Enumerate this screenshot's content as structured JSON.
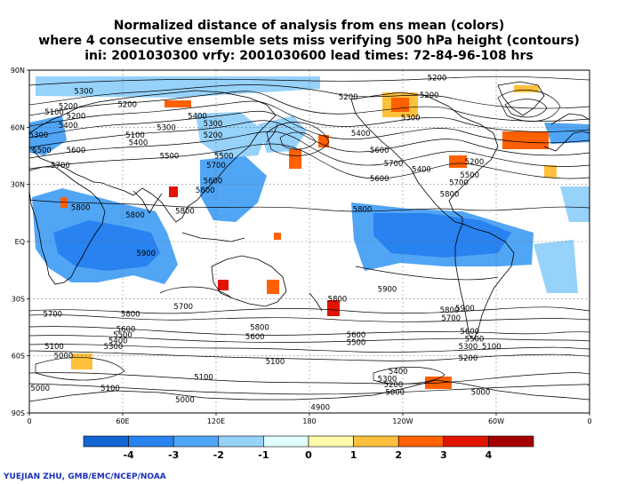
{
  "title": {
    "line1": "Normalized distance of analysis from ens mean (colors)",
    "line2": "where 4 consecutive ensemble sets miss verifying 500 hPa height (contours)",
    "line3": "ini: 2001030300 vrfy: 2001030600 lead times: 72-84-96-108 hrs"
  },
  "map": {
    "lat_ticks": [
      "90N",
      "60N",
      "30N",
      "EQ",
      "30S",
      "60S",
      "90S"
    ],
    "lon_ticks": [
      "0",
      "60E",
      "120E",
      "180",
      "120W",
      "60W",
      "0"
    ],
    "contour_labels": [
      {
        "text": "5300",
        "lon": 35,
        "lat": 79
      },
      {
        "text": "5200",
        "lon": 25,
        "lat": 71
      },
      {
        "text": "5100",
        "lon": 16,
        "lat": 68
      },
      {
        "text": "5200",
        "lon": 30,
        "lat": 66
      },
      {
        "text": "5400",
        "lon": 25,
        "lat": 61
      },
      {
        "text": "5300",
        "lon": 6,
        "lat": 56
      },
      {
        "text": "5500",
        "lon": 8,
        "lat": 48
      },
      {
        "text": "5600",
        "lon": 30,
        "lat": 48
      },
      {
        "text": "5700",
        "lon": 20,
        "lat": 40
      },
      {
        "text": "5200",
        "lon": 63,
        "lat": 72
      },
      {
        "text": "5300",
        "lon": 88,
        "lat": 60
      },
      {
        "text": "5400",
        "lon": 70,
        "lat": 52
      },
      {
        "text": "5500",
        "lon": 90,
        "lat": 45
      },
      {
        "text": "5800",
        "lon": 33,
        "lat": 18
      },
      {
        "text": "5800",
        "lon": 68,
        "lat": 14
      },
      {
        "text": "5800",
        "lon": 100,
        "lat": 16
      },
      {
        "text": "5900",
        "lon": 75,
        "lat": -6
      },
      {
        "text": "5100",
        "lon": 68,
        "lat": 56
      },
      {
        "text": "5200",
        "lon": 118,
        "lat": 56
      },
      {
        "text": "5300",
        "lon": 118,
        "lat": 62
      },
      {
        "text": "5400",
        "lon": 108,
        "lat": 66
      },
      {
        "text": "5500",
        "lon": 125,
        "lat": 45
      },
      {
        "text": "5600",
        "lon": 118,
        "lat": 32
      },
      {
        "text": "5700",
        "lon": 120,
        "lat": 40
      },
      {
        "text": "5800",
        "lon": 113,
        "lat": 27
      },
      {
        "text": "5200",
        "lon": 205,
        "lat": 76
      },
      {
        "text": "5400",
        "lon": 213,
        "lat": 57
      },
      {
        "text": "5600",
        "lon": 225,
        "lat": 48
      },
      {
        "text": "5700",
        "lon": 234,
        "lat": 41
      },
      {
        "text": "5600",
        "lon": 225,
        "lat": 33
      },
      {
        "text": "5300",
        "lon": 245,
        "lat": 65
      },
      {
        "text": "5800",
        "lon": 214,
        "lat": 17
      },
      {
        "text": "5900",
        "lon": 230,
        "lat": -25
      },
      {
        "text": "5200",
        "lon": 262,
        "lat": 86
      },
      {
        "text": "5200",
        "lon": 257,
        "lat": 77
      },
      {
        "text": "5400",
        "lon": 252,
        "lat": 38
      },
      {
        "text": "5200",
        "lon": 286,
        "lat": 42
      },
      {
        "text": "5500",
        "lon": 283,
        "lat": 35
      },
      {
        "text": "5700",
        "lon": 276,
        "lat": 31
      },
      {
        "text": "5800",
        "lon": 270,
        "lat": 25
      },
      {
        "text": "5900",
        "lon": 280,
        "lat": -35
      },
      {
        "text": "5800",
        "lon": 198,
        "lat": -30
      },
      {
        "text": "5800",
        "lon": 270,
        "lat": -36
      },
      {
        "text": "5700",
        "lon": 271,
        "lat": -40
      },
      {
        "text": "5700",
        "lon": 15,
        "lat": -38
      },
      {
        "text": "5800",
        "lon": 65,
        "lat": -38
      },
      {
        "text": "5700",
        "lon": 99,
        "lat": -34
      },
      {
        "text": "5800",
        "lon": 148,
        "lat": -45
      },
      {
        "text": "5600",
        "lon": 145,
        "lat": -50
      },
      {
        "text": "5600",
        "lon": 210,
        "lat": -49
      },
      {
        "text": "5500",
        "lon": 210,
        "lat": -53
      },
      {
        "text": "5600",
        "lon": 283,
        "lat": -47
      },
      {
        "text": "5500",
        "lon": 286,
        "lat": -51
      },
      {
        "text": "5300",
        "lon": 282,
        "lat": -55
      },
      {
        "text": "5100",
        "lon": 297,
        "lat": -55
      },
      {
        "text": "5200",
        "lon": 282,
        "lat": -61
      },
      {
        "text": "5600",
        "lon": 62,
        "lat": -46
      },
      {
        "text": "5500",
        "lon": 60,
        "lat": -49
      },
      {
        "text": "5400",
        "lon": 57,
        "lat": -52
      },
      {
        "text": "5300",
        "lon": 54,
        "lat": -55
      },
      {
        "text": "5100",
        "lon": 16,
        "lat": -55
      },
      {
        "text": "5000",
        "lon": 22,
        "lat": -60
      },
      {
        "text": "5000",
        "lon": 7,
        "lat": -77
      },
      {
        "text": "5100",
        "lon": 52,
        "lat": -77
      },
      {
        "text": "5100",
        "lon": 112,
        "lat": -71
      },
      {
        "text": "5000",
        "lon": 100,
        "lat": -83
      },
      {
        "text": "5100",
        "lon": 158,
        "lat": -63
      },
      {
        "text": "5400",
        "lon": 237,
        "lat": -68
      },
      {
        "text": "5300",
        "lon": 230,
        "lat": -72
      },
      {
        "text": "5200",
        "lon": 234,
        "lat": -75
      },
      {
        "text": "5000",
        "lon": 235,
        "lat": -79
      },
      {
        "text": "4900",
        "lon": 187,
        "lat": -87
      },
      {
        "text": "5000",
        "lon": 290,
        "lat": -79
      }
    ]
  },
  "colorbar": {
    "colors": [
      "#1464d2",
      "#2882f0",
      "#50a5f5",
      "#96d2fa",
      "#e1ffff",
      "#fffaaa",
      "#ffc03c",
      "#ff6000",
      "#e11400",
      "#a50000"
    ],
    "labels": [
      "-4",
      "-3",
      "-2",
      "-1",
      "0",
      "1",
      "2",
      "3",
      "4"
    ]
  },
  "credit": "YUEJIAN ZHU, GMB/EMC/NCEP/NOAA"
}
